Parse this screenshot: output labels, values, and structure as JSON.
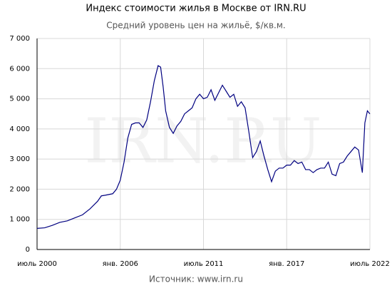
{
  "chart_data": {
    "type": "line",
    "title": "Индекс стоимости жилья в Москве от IRN.RU",
    "subtitle": "Средний уровень цен на жильё, $/кв.м.",
    "source": "Источник: www.irn.ru",
    "watermark": "IRN.RU",
    "color": "#000080",
    "grid": true,
    "x": [
      "2000-07",
      "2001-01",
      "2001-07",
      "2002-01",
      "2002-07",
      "2003-01",
      "2003-07",
      "2004-01",
      "2004-07",
      "2004-10",
      "2005-01",
      "2005-07",
      "2005-10",
      "2006-01",
      "2006-04",
      "2006-07",
      "2006-10",
      "2007-01",
      "2007-04",
      "2007-07",
      "2007-10",
      "2008-01",
      "2008-04",
      "2008-07",
      "2008-09",
      "2008-11",
      "2009-01",
      "2009-04",
      "2009-07",
      "2009-10",
      "2010-01",
      "2010-04",
      "2010-07",
      "2010-10",
      "2011-01",
      "2011-04",
      "2011-07",
      "2011-10",
      "2012-01",
      "2012-04",
      "2012-07",
      "2012-10",
      "2013-01",
      "2013-04",
      "2013-07",
      "2013-10",
      "2014-01",
      "2014-04",
      "2014-07",
      "2014-10",
      "2015-01",
      "2015-04",
      "2015-07",
      "2015-10",
      "2016-01",
      "2016-04",
      "2016-07",
      "2016-10",
      "2017-01",
      "2017-04",
      "2017-07",
      "2017-10",
      "2018-01",
      "2018-04",
      "2018-07",
      "2018-10",
      "2019-01",
      "2019-04",
      "2019-07",
      "2019-10",
      "2020-01",
      "2020-04",
      "2020-07",
      "2020-10",
      "2021-01",
      "2021-04",
      "2021-07",
      "2021-10",
      "2022-01",
      "2022-03",
      "2022-05",
      "2022-07"
    ],
    "values": [
      700,
      720,
      800,
      900,
      950,
      1050,
      1150,
      1350,
      1600,
      1780,
      1800,
      1850,
      2000,
      2300,
      2900,
      3700,
      4150,
      4200,
      4200,
      4050,
      4300,
      4900,
      5600,
      6100,
      6050,
      5400,
      4600,
      4050,
      3850,
      4100,
      4250,
      4500,
      4600,
      4700,
      5000,
      5150,
      5000,
      5050,
      5300,
      4950,
      5200,
      5450,
      5250,
      5050,
      5150,
      4750,
      4900,
      4700,
      3900,
      3050,
      3250,
      3600,
      3100,
      2650,
      2250,
      2600,
      2700,
      2700,
      2800,
      2800,
      2950,
      2850,
      2900,
      2650,
      2650,
      2550,
      2650,
      2700,
      2700,
      2900,
      2500,
      2450,
      2850,
      2900,
      3100,
      3250,
      3400,
      3300,
      2550,
      4200,
      4600,
      4500
    ],
    "xlim": [
      "2000-07",
      "2022-07"
    ],
    "xticks": [
      {
        "value": "2000-07",
        "label": "июль 2000"
      },
      {
        "value": "2006-01",
        "label": "янв. 2006"
      },
      {
        "value": "2011-07",
        "label": "июль 2011"
      },
      {
        "value": "2017-01",
        "label": "янв. 2017"
      },
      {
        "value": "2022-07",
        "label": "июль 2022"
      }
    ],
    "ylim": [
      0,
      7000
    ],
    "yticks": [
      0,
      {
        "value": 1000,
        "label": "1 000"
      },
      {
        "value": 2000,
        "label": "2 000"
      },
      {
        "value": 3000,
        "label": "3 000"
      },
      {
        "value": 4000,
        "label": "4 000"
      },
      {
        "value": 5000,
        "label": "5 000"
      },
      {
        "value": 6000,
        "label": "6 000"
      },
      {
        "value": 7000,
        "label": "7 000"
      }
    ]
  }
}
